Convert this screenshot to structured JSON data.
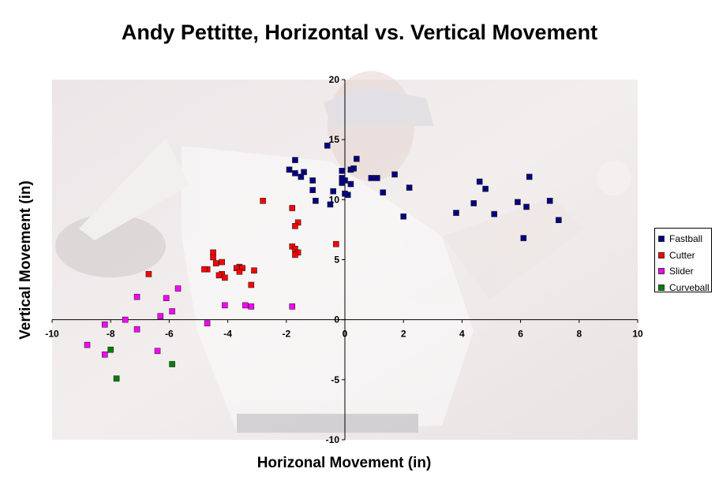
{
  "chart_data": {
    "type": "scatter",
    "title": "Andy Pettitte, Horizontal vs. Vertical Movement",
    "xlabel": "Horizonal Movement (in)",
    "ylabel": "Vertical Movement (in)",
    "xlim": [
      -10,
      10
    ],
    "ylim": [
      -10,
      20
    ],
    "xticks": [
      -10,
      -8,
      -6,
      -4,
      -2,
      0,
      2,
      4,
      6,
      8,
      10
    ],
    "yticks": [
      -10,
      -5,
      0,
      5,
      10,
      15,
      20
    ],
    "grid": false,
    "background": "faded photograph of the pitcher throwing",
    "legend_position": "right",
    "series": [
      {
        "name": "Fastball",
        "color": "#000080",
        "points": [
          [
            -0.6,
            14.5
          ],
          [
            -1.7,
            13.3
          ],
          [
            -1.9,
            12.5
          ],
          [
            -1.7,
            12.2
          ],
          [
            -1.4,
            12.3
          ],
          [
            -1.5,
            11.9
          ],
          [
            -1.1,
            11.6
          ],
          [
            -1.1,
            10.8
          ],
          [
            -1.0,
            9.9
          ],
          [
            -0.5,
            9.6
          ],
          [
            -0.4,
            10.7
          ],
          [
            -0.1,
            12.4
          ],
          [
            -0.1,
            11.8
          ],
          [
            -0.1,
            11.4
          ],
          [
            0.0,
            11.6
          ],
          [
            0.0,
            10.5
          ],
          [
            0.1,
            10.4
          ],
          [
            0.2,
            12.5
          ],
          [
            0.3,
            12.6
          ],
          [
            0.4,
            13.4
          ],
          [
            0.2,
            11.3
          ],
          [
            0.9,
            11.8
          ],
          [
            1.1,
            11.8
          ],
          [
            1.3,
            10.6
          ],
          [
            1.7,
            12.1
          ],
          [
            2.2,
            11.0
          ],
          [
            2.0,
            8.6
          ],
          [
            3.8,
            8.9
          ],
          [
            4.4,
            9.7
          ],
          [
            4.6,
            11.5
          ],
          [
            4.8,
            10.9
          ],
          [
            5.1,
            8.8
          ],
          [
            5.9,
            9.8
          ],
          [
            6.2,
            9.4
          ],
          [
            6.1,
            6.8
          ],
          [
            6.3,
            11.9
          ],
          [
            7.0,
            9.9
          ],
          [
            7.3,
            8.3
          ]
        ]
      },
      {
        "name": "Cutter",
        "color": "#ff0000",
        "points": [
          [
            -2.8,
            9.9
          ],
          [
            -1.8,
            9.3
          ],
          [
            -1.6,
            8.1
          ],
          [
            -1.7,
            7.8
          ],
          [
            -1.8,
            6.1
          ],
          [
            -1.7,
            5.9
          ],
          [
            -1.6,
            5.6
          ],
          [
            -1.7,
            5.4
          ],
          [
            -0.3,
            6.3
          ],
          [
            -4.5,
            5.6
          ],
          [
            -4.5,
            5.2
          ],
          [
            -4.4,
            4.7
          ],
          [
            -4.2,
            4.8
          ],
          [
            -4.7,
            4.2
          ],
          [
            -4.8,
            4.2
          ],
          [
            -4.2,
            3.8
          ],
          [
            -4.3,
            3.7
          ],
          [
            -4.1,
            3.5
          ],
          [
            -3.6,
            4.4
          ],
          [
            -3.7,
            4.3
          ],
          [
            -3.5,
            4.3
          ],
          [
            -3.6,
            4.0
          ],
          [
            -3.1,
            4.1
          ],
          [
            -3.2,
            2.9
          ],
          [
            -6.7,
            3.8
          ]
        ]
      },
      {
        "name": "Slider",
        "color": "#ff00ff",
        "points": [
          [
            -1.8,
            1.1
          ],
          [
            -3.4,
            1.2
          ],
          [
            -3.2,
            1.1
          ],
          [
            -4.1,
            1.2
          ],
          [
            -5.7,
            2.6
          ],
          [
            -6.1,
            1.8
          ],
          [
            -7.1,
            1.9
          ],
          [
            -5.9,
            0.7
          ],
          [
            -6.3,
            0.3
          ],
          [
            -4.7,
            -0.3
          ],
          [
            -7.5,
            0.0
          ],
          [
            -8.2,
            -0.4
          ],
          [
            -7.1,
            -0.8
          ],
          [
            -8.8,
            -2.1
          ],
          [
            -6.4,
            -2.6
          ],
          [
            -8.2,
            -2.9
          ]
        ]
      },
      {
        "name": "Curveball",
        "color": "#008000",
        "points": [
          [
            -8.0,
            -2.5
          ],
          [
            -5.9,
            -3.7
          ],
          [
            -7.8,
            -4.9
          ]
        ]
      }
    ]
  }
}
